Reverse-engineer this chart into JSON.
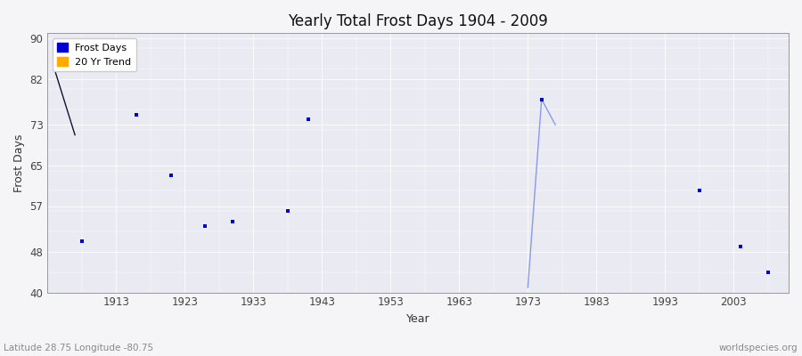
{
  "title": "Yearly Total Frost Days 1904 - 2009",
  "xlabel": "Year",
  "ylabel": "Frost Days",
  "subtitle": "Latitude 28.75 Longitude -80.75",
  "watermark": "worldspecies.org",
  "xlim": [
    1903,
    2011
  ],
  "ylim": [
    40,
    91
  ],
  "yticks": [
    40,
    48,
    57,
    65,
    73,
    82,
    90
  ],
  "xticks": [
    1913,
    1923,
    1933,
    1943,
    1953,
    1963,
    1973,
    1983,
    1993,
    2003
  ],
  "bg_color": "#f0f0f5",
  "plot_bg": "#eaeaf2",
  "frost_days_color": "#0000cc",
  "trend_color": "#8899ee",
  "dark_trend_color": "#111133",
  "frost_points": [
    [
      1908,
      50
    ],
    [
      1916,
      75
    ],
    [
      1921,
      63
    ],
    [
      1926,
      53
    ],
    [
      1930,
      54
    ],
    [
      1938,
      56
    ],
    [
      1941,
      74
    ],
    [
      1975,
      78
    ],
    [
      1998,
      60
    ],
    [
      2004,
      49
    ],
    [
      2008,
      44
    ]
  ],
  "trend_line_dark": [
    [
      1904,
      84
    ],
    [
      1907,
      71
    ]
  ],
  "trend_line_light_spike": [
    [
      1973,
      41
    ],
    [
      1975,
      78
    ],
    [
      1977,
      73
    ]
  ]
}
